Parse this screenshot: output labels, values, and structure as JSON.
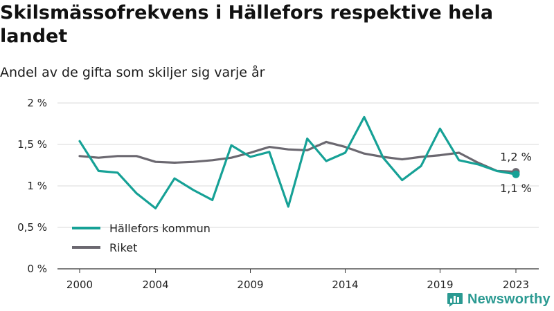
{
  "title": "Skilsmässofrekvens i Hällefors respektive hela landet",
  "subtitle": "Andel av de gifta som skiljer sig varje år",
  "brand": {
    "name": "Newsworthy",
    "icon": "bar-chart-logo-icon",
    "color": "#2b9a92"
  },
  "chart_data": {
    "type": "line",
    "title": "Skilsmässofrekvens i Hällefors respektive hela landet",
    "subtitle": "Andel av de gifta som skiljer sig varje år",
    "xlabel": "",
    "ylabel": "",
    "x": [
      2000,
      2001,
      2002,
      2003,
      2004,
      2005,
      2006,
      2007,
      2008,
      2009,
      2010,
      2011,
      2012,
      2013,
      2014,
      2015,
      2016,
      2017,
      2018,
      2019,
      2020,
      2021,
      2022,
      2023
    ],
    "xticks": [
      2000,
      2004,
      2009,
      2014,
      2019,
      2023
    ],
    "ylim": [
      0,
      2
    ],
    "yticks": [
      0,
      0.5,
      1,
      1.5,
      2
    ],
    "ytick_labels": [
      "0 %",
      "0,5 %",
      "1 %",
      "1,5 %",
      "2 %"
    ],
    "grid": "horizontal",
    "legend_position": "bottom-left",
    "series": [
      {
        "name": "Hällefors kommun",
        "color": "#16a196",
        "values": [
          1.54,
          1.18,
          1.16,
          0.91,
          0.73,
          1.09,
          0.95,
          0.83,
          1.49,
          1.35,
          1.41,
          0.75,
          1.57,
          1.3,
          1.4,
          1.83,
          1.34,
          1.07,
          1.24,
          1.69,
          1.31,
          1.26,
          1.18,
          1.14
        ],
        "end_label": "1,1 %"
      },
      {
        "name": "Riket",
        "color": "#6b6870",
        "values": [
          1.36,
          1.34,
          1.36,
          1.36,
          1.29,
          1.28,
          1.29,
          1.31,
          1.34,
          1.4,
          1.47,
          1.44,
          1.43,
          1.53,
          1.47,
          1.39,
          1.35,
          1.32,
          1.35,
          1.37,
          1.4,
          1.28,
          1.18,
          1.17
        ],
        "end_label": "1,2 %"
      }
    ]
  }
}
